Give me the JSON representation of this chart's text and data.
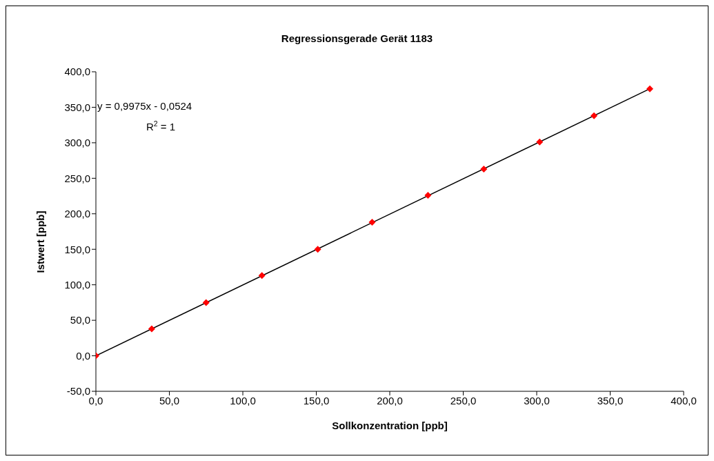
{
  "chart_data": {
    "type": "scatter",
    "title": "Regressionsgerade Gerät 1183",
    "xlabel": "Sollkonzentration [ppb]",
    "ylabel": "Istwert [ppb]",
    "annotations": [
      "y = 0,9975x - 0,0524",
      "R$^{2}$ = 1"
    ],
    "x": [
      0,
      38,
      75,
      113,
      151,
      188,
      226,
      264,
      302,
      339,
      377
    ],
    "series": [
      {
        "color": "#ff0000",
        "marker": "diamond",
        "values": [
          0,
          38,
          75,
          113,
          150,
          188,
          226,
          263,
          301,
          338,
          376
        ]
      },
      {
        "type": "line",
        "color": "#000000",
        "marker": "none",
        "x": [
          0,
          377
        ],
        "values": [
          0,
          376
        ]
      }
    ],
    "xlim": [
      0,
      400
    ],
    "ylim": [
      -50,
      400
    ],
    "xticks": [
      {
        "value": 0,
        "label": "0,0"
      },
      {
        "value": 50,
        "label": "50,0"
      },
      {
        "value": 100,
        "label": "100,0"
      },
      {
        "value": 150,
        "label": "150,0"
      },
      {
        "value": 200,
        "label": "200,0"
      },
      {
        "value": 250,
        "label": "250,0"
      },
      {
        "value": 300,
        "label": "300,0"
      },
      {
        "value": 350,
        "label": "350,0"
      },
      {
        "value": 400,
        "label": "400,0"
      }
    ],
    "yticks": [
      {
        "value": -50,
        "label": "-50,0"
      },
      {
        "value": 0,
        "label": "0,0"
      },
      {
        "value": 50,
        "label": "50,0"
      },
      {
        "value": 100,
        "label": "100,0"
      },
      {
        "value": 150,
        "label": "150,0"
      },
      {
        "value": 200,
        "label": "200,0"
      },
      {
        "value": 250,
        "label": "250,0"
      },
      {
        "value": 300,
        "label": "300,0"
      },
      {
        "value": 350,
        "label": "350,0"
      },
      {
        "value": 400,
        "label": "400,0"
      }
    ],
    "grid": false,
    "legend": false
  }
}
